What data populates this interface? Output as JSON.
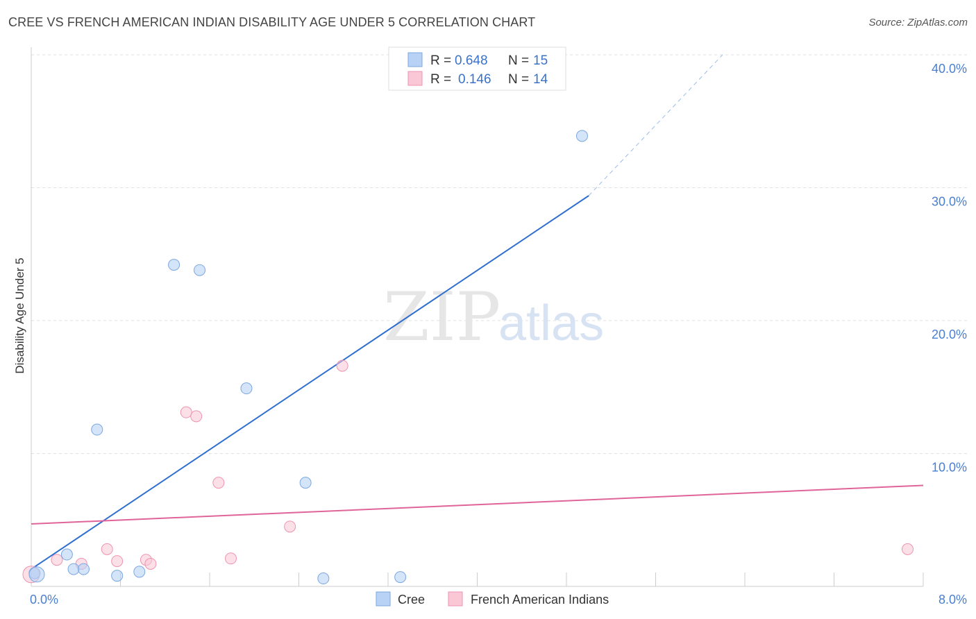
{
  "header": {
    "title": "CREE VS FRENCH AMERICAN INDIAN DISABILITY AGE UNDER 5 CORRELATION CHART",
    "source": "Source: ZipAtlas.com"
  },
  "watermark": {
    "zip": "ZIP",
    "atlas": "atlas"
  },
  "colors": {
    "cree_fill": "#b8d2f5",
    "cree_stroke": "#7ba7e0",
    "cree_line": "#2f6fd0",
    "french_fill": "#f9c7d6",
    "french_stroke": "#ee93b0",
    "french_line": "#e0649a",
    "grid": "#e0e0e0",
    "tick_text": "#4a7fd0"
  },
  "legend": {
    "rows": [
      {
        "r_label": "R =",
        "r_value": "0.648",
        "n_label": "N =",
        "n_value": "15"
      },
      {
        "r_label": "R =",
        "r_value": "0.146",
        "n_label": "N =",
        "n_value": "14"
      }
    ]
  },
  "chart_data": {
    "type": "scatter",
    "title": "CREE VS FRENCH AMERICAN INDIAN DISABILITY AGE UNDER 5 CORRELATION CHART",
    "xlabel": "",
    "ylabel": "Disability Age Under 5",
    "xlim": [
      0,
      8
    ],
    "ylim": [
      0,
      40
    ],
    "x_tick_labels": [
      "0.0%",
      "8.0%"
    ],
    "y_ticks": [
      10,
      20,
      30,
      40
    ],
    "y_tick_labels": [
      "10.0%",
      "20.0%",
      "30.0%",
      "40.0%"
    ],
    "legend_position": "bottom",
    "series": [
      {
        "name": "Cree",
        "R": 0.648,
        "N": 15,
        "points": [
          [
            0.03,
            1.0
          ],
          [
            0.38,
            1.3
          ],
          [
            0.32,
            2.4
          ],
          [
            0.47,
            1.3
          ],
          [
            0.77,
            0.8
          ],
          [
            0.97,
            1.1
          ],
          [
            0.59,
            11.8
          ],
          [
            1.28,
            24.2
          ],
          [
            1.51,
            23.8
          ],
          [
            1.93,
            14.9
          ],
          [
            2.46,
            7.8
          ],
          [
            2.62,
            0.6
          ],
          [
            3.31,
            0.7
          ],
          [
            4.94,
            33.9
          ],
          [
            0.05,
            0.9
          ]
        ],
        "trend": {
          "x0": 0.0,
          "y0": 1.3,
          "x1": 5.0,
          "y1": 29.4,
          "x_dash_end": 6.2,
          "y_dash_end": 40.0
        }
      },
      {
        "name": "French American Indians",
        "R": 0.146,
        "N": 14,
        "points": [
          [
            0.0,
            0.9
          ],
          [
            0.23,
            2.0
          ],
          [
            0.45,
            1.7
          ],
          [
            0.68,
            2.8
          ],
          [
            0.77,
            1.9
          ],
          [
            1.03,
            2.0
          ],
          [
            1.07,
            1.7
          ],
          [
            1.39,
            13.1
          ],
          [
            1.48,
            12.8
          ],
          [
            1.68,
            7.8
          ],
          [
            1.79,
            2.1
          ],
          [
            2.32,
            4.5
          ],
          [
            2.79,
            16.6
          ],
          [
            7.86,
            2.8
          ]
        ],
        "trend": {
          "x0": 0.0,
          "y0": 4.7,
          "x1": 8.0,
          "y1": 7.6
        }
      }
    ]
  }
}
